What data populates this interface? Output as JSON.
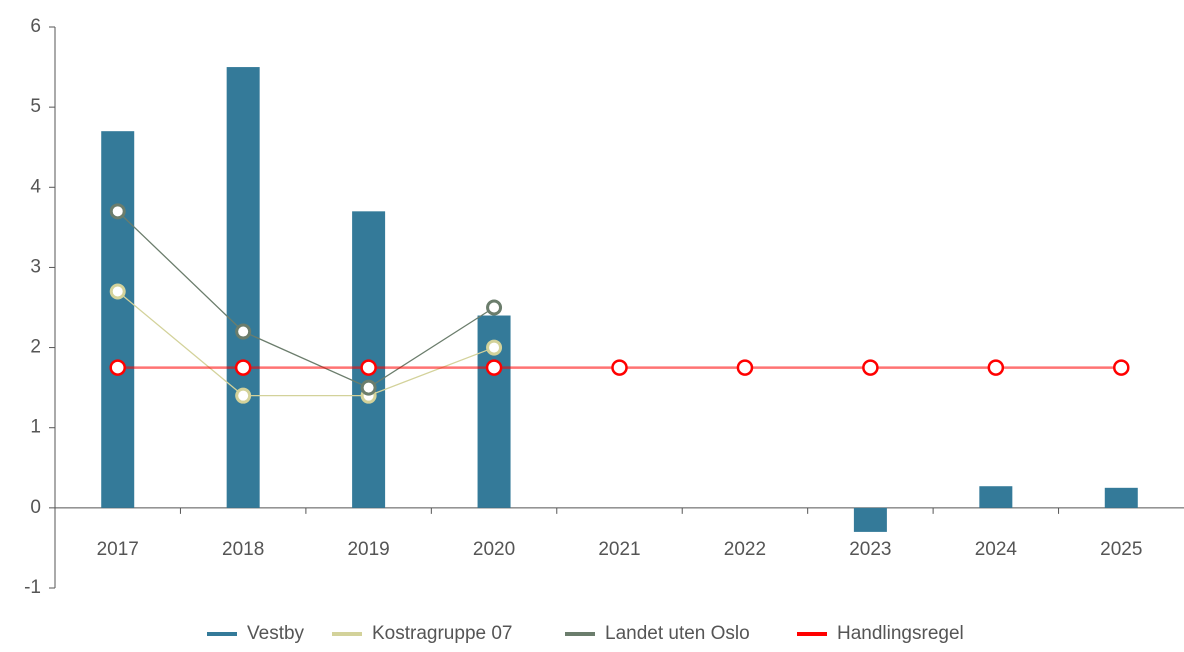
{
  "chart_data": {
    "type": "bar",
    "categories": [
      "2017",
      "2018",
      "2019",
      "2020",
      "2021",
      "2022",
      "2023",
      "2024",
      "2025"
    ],
    "series": [
      {
        "name": "Vestby",
        "type": "bar",
        "color": "#347a99",
        "values": [
          4.7,
          5.5,
          3.7,
          2.4,
          null,
          null,
          -0.3,
          0.27,
          0.25
        ]
      },
      {
        "name": "Kostragruppe 07",
        "type": "line",
        "color": "#d3d29a",
        "values": [
          2.7,
          1.4,
          1.4,
          2.0,
          null,
          null,
          null,
          null,
          null
        ]
      },
      {
        "name": "Landet uten Oslo",
        "type": "line",
        "color": "#6b7d6c",
        "values": [
          3.7,
          2.2,
          1.5,
          2.5,
          null,
          null,
          null,
          null,
          null
        ]
      },
      {
        "name": "Handlingsregel",
        "type": "line",
        "color": "#ff0000",
        "values": [
          1.75,
          1.75,
          1.75,
          1.75,
          1.75,
          1.75,
          1.75,
          1.75,
          1.75
        ]
      }
    ],
    "ylim": [
      -1,
      6
    ],
    "yticks": [
      -1,
      0,
      1,
      2,
      3,
      4,
      5,
      6
    ],
    "legend": "bottom"
  }
}
